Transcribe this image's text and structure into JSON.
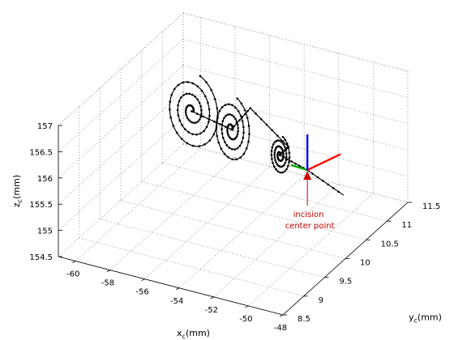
{
  "chart_data": {
    "type": "scatter",
    "subtype": "3d-line-markers",
    "title": "",
    "axes": {
      "x": {
        "label": "x",
        "subscript": "c",
        "unit": "(mm)",
        "range": [
          -61,
          -48
        ],
        "ticks": [
          -60,
          -58,
          -56,
          -54,
          -52,
          -50,
          -48
        ],
        "tick_labels": [
          "-60",
          "-58",
          "-56",
          "-54",
          "-52",
          "-50",
          "-48"
        ]
      },
      "y": {
        "label": "y",
        "subscript": "c",
        "unit": "(mm)",
        "range": [
          8.5,
          11.5
        ],
        "ticks": [
          8.5,
          9,
          9.5,
          10,
          10.5,
          11,
          11.5
        ],
        "tick_labels": [
          "8.5",
          "9",
          "9.5",
          "10",
          "10.5",
          "11",
          "11.5"
        ]
      },
      "z": {
        "label": "z",
        "subscript": "c",
        "unit": "(mm)",
        "range": [
          154.5,
          157
        ],
        "ticks": [
          154.5,
          155,
          155.5,
          156,
          156.5,
          157
        ],
        "tick_labels": [
          "154.5",
          "155",
          "155.5",
          "156",
          "156.5",
          "157"
        ]
      }
    },
    "grid": true,
    "box": true,
    "spirals": [
      {
        "center_x": -56.9,
        "center_y": 10.0,
        "center_z": 156.55,
        "max_radius_x": 1.6,
        "max_radius_z": 0.75,
        "turns": 3.2
      },
      {
        "center_x": -54.6,
        "center_y": 10.0,
        "center_z": 156.4,
        "max_radius_x": 1.1,
        "max_radius_z": 0.65,
        "turns": 3.2
      },
      {
        "center_x": -51.8,
        "center_y": 10.0,
        "center_z": 156.15,
        "max_radius_x": 0.6,
        "max_radius_z": 0.38,
        "turns": 3.2
      }
    ],
    "path": [
      [
        -56.9,
        10.0,
        156.55
      ],
      [
        -54.6,
        10.0,
        156.4
      ],
      [
        -53.5,
        10.0,
        156.9
      ],
      [
        -51.3,
        10.0,
        156.35
      ],
      [
        -51.8,
        10.0,
        156.15
      ],
      [
        -50.2,
        10.0,
        156.0
      ],
      [
        -48.1,
        10.0,
        155.7
      ]
    ],
    "incision_point": [
      -50.2,
      10.0,
      156.0
    ],
    "frame_axes": [
      {
        "name": "x",
        "color": "#ff0000",
        "vector": [
          0.8,
          0.0,
          0.55
        ]
      },
      {
        "name": "y",
        "color": "#00aa00",
        "vector": [
          -0.4,
          0.0,
          0.02
        ]
      },
      {
        "name": "z",
        "color": "#0000ff",
        "vector": [
          0.0,
          0.0,
          0.8
        ]
      }
    ],
    "annotation": {
      "lines": [
        "incision",
        "center point"
      ],
      "color": "#cc0000",
      "target": [
        -50.2,
        10.0,
        156.0
      ]
    },
    "colors": {
      "trajectory": "#000000",
      "annotation": "#cc0000",
      "grid": "#888888",
      "axis": "#000000"
    }
  }
}
